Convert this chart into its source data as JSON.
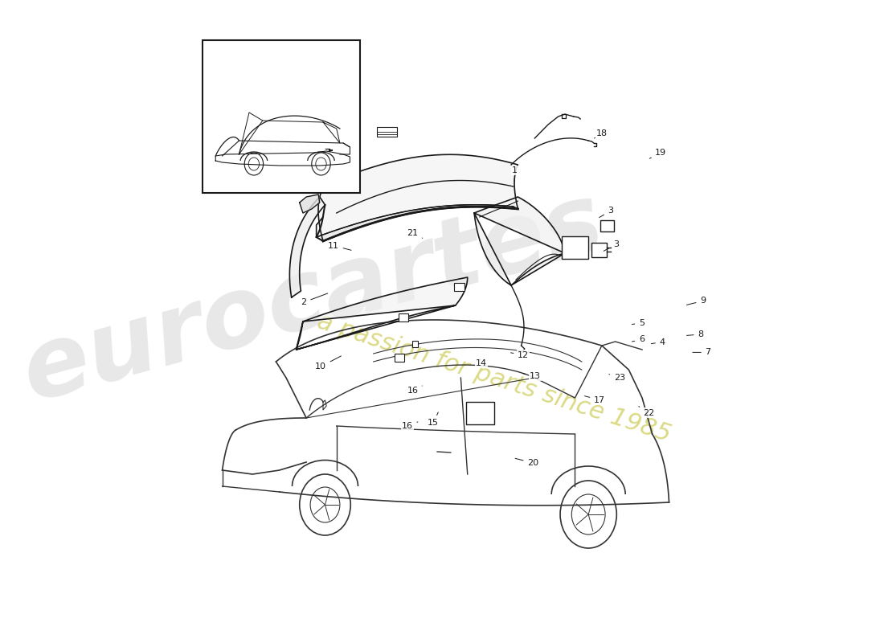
{
  "bg_color": "#ffffff",
  "line_color": "#1a1a1a",
  "car_line_color": "#333333",
  "watermark_color1": "#cccccc",
  "watermark_color2": "#e8e8b0",
  "parts_layout": [
    [
      1,
      0.5,
      0.735,
      0.5,
      0.715
    ],
    [
      2,
      0.215,
      0.53,
      0.25,
      0.545
    ],
    [
      3,
      0.63,
      0.672,
      0.612,
      0.66
    ],
    [
      3,
      0.638,
      0.62,
      0.618,
      0.608
    ],
    [
      4,
      0.7,
      0.468,
      0.682,
      0.465
    ],
    [
      5,
      0.672,
      0.498,
      0.656,
      0.495
    ],
    [
      6,
      0.672,
      0.472,
      0.656,
      0.468
    ],
    [
      7,
      0.762,
      0.452,
      0.738,
      0.452
    ],
    [
      8,
      0.752,
      0.48,
      0.73,
      0.478
    ],
    [
      9,
      0.755,
      0.532,
      0.73,
      0.525
    ],
    [
      10,
      0.238,
      0.43,
      0.268,
      0.448
    ],
    [
      11,
      0.255,
      0.618,
      0.282,
      0.61
    ],
    [
      12,
      0.512,
      0.448,
      0.492,
      0.452
    ],
    [
      13,
      0.528,
      0.415,
      0.508,
      0.42
    ],
    [
      14,
      0.455,
      0.435,
      0.453,
      0.442
    ],
    [
      15,
      0.39,
      0.342,
      0.398,
      0.362
    ],
    [
      16,
      0.362,
      0.392,
      0.375,
      0.4
    ],
    [
      16,
      0.355,
      0.338,
      0.372,
      0.345
    ],
    [
      17,
      0.615,
      0.378,
      0.592,
      0.385
    ],
    [
      18,
      0.618,
      0.792,
      0.608,
      0.785
    ],
    [
      19,
      0.698,
      0.762,
      0.68,
      0.752
    ],
    [
      20,
      0.525,
      0.28,
      0.498,
      0.288
    ],
    [
      21,
      0.362,
      0.638,
      0.378,
      0.628
    ],
    [
      22,
      0.682,
      0.358,
      0.668,
      0.368
    ],
    [
      23,
      0.642,
      0.412,
      0.628,
      0.418
    ]
  ]
}
